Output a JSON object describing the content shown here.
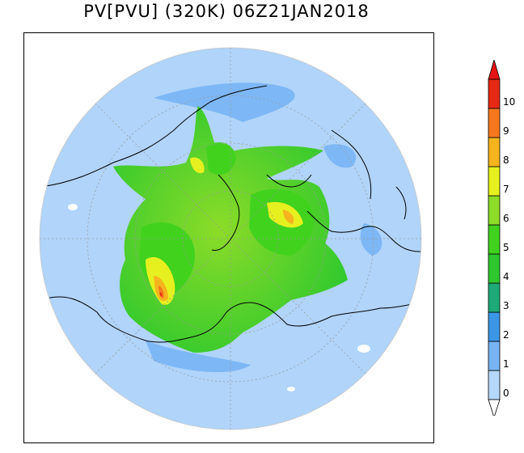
{
  "title": "PV[PVU]  (320K)  06Z21JAN2018",
  "colors": {
    "ocean_background": "#b0d4fa",
    "coastline": "#000000",
    "graticule": "#9a9a9a"
  },
  "colorbar": {
    "labels": [
      "0",
      "1",
      "2",
      "3",
      "4",
      "5",
      "6",
      "7",
      "8",
      "9",
      "10"
    ],
    "bands": [
      "#b4d7fa",
      "#78b4f5",
      "#3c96e6",
      "#1eaa78",
      "#2ec82e",
      "#41d21e",
      "#8cdc28",
      "#e6f01e",
      "#f5b41e",
      "#f5781e",
      "#e62814"
    ],
    "under_color": "#ffffff",
    "over_color": "#e61414"
  }
}
